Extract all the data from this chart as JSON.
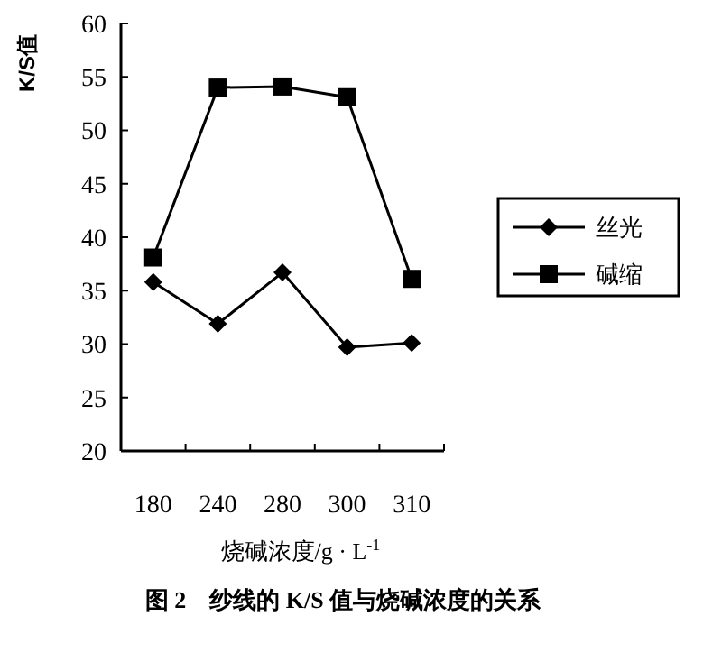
{
  "chart_data": {
    "type": "line",
    "title": "图 2　纱线的 K/S 值与烧碱浓度的关系",
    "xlabel": "烧碱浓度/g · L$^{-1}$",
    "ylabel": "K/S值",
    "categories": [
      "180",
      "240",
      "280",
      "300",
      "310"
    ],
    "series": [
      {
        "name": "丝光",
        "color": "#000000",
        "marker": "diamond",
        "values": [
          35.8,
          31.9,
          36.7,
          29.7,
          30.1
        ]
      },
      {
        "name": "碱缩",
        "color": "#000000",
        "marker": "square",
        "values": [
          38.1,
          54.0,
          54.1,
          53.1,
          36.1
        ]
      }
    ],
    "ylim": [
      20,
      60
    ],
    "yticks": [
      20,
      25,
      30,
      35,
      40,
      45,
      50,
      55,
      60
    ],
    "legend": "right",
    "grid": false,
    "line_style": "solid"
  }
}
